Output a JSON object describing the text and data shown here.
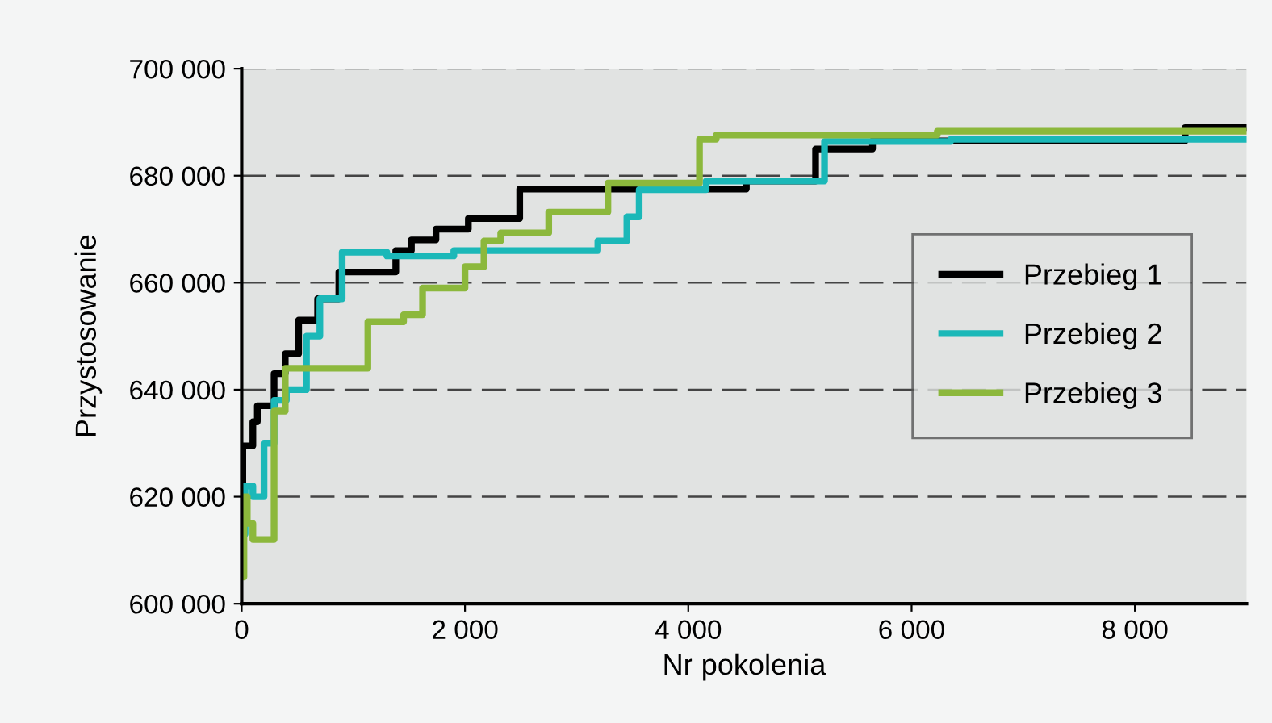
{
  "chart_data": {
    "type": "step",
    "xlabel": "Nr pokolenia",
    "ylabel": "Przystosowanie",
    "xlim": [
      0,
      9000
    ],
    "xticks": [
      0,
      {
        "value": 2000,
        "label": "2 000"
      },
      {
        "value": 4000,
        "label": "4 000"
      },
      {
        "value": 6000,
        "label": "6 000"
      },
      {
        "value": 8000,
        "label": "8 000"
      }
    ],
    "ylim": [
      600000,
      700000
    ],
    "yticks": [
      {
        "value": 600000,
        "label": "600 000"
      },
      {
        "value": 620000,
        "label": "620 000"
      },
      {
        "value": 640000,
        "label": "640 000"
      },
      {
        "value": 660000,
        "label": "660 000"
      },
      {
        "value": 680000,
        "label": "680 000"
      },
      {
        "value": 700000,
        "label": "700 000"
      }
    ],
    "grid": "y",
    "legend": "right",
    "line_style": "solid",
    "marker": "none",
    "series": [
      {
        "name": "Przebieg 1",
        "color": "#000000",
        "x": [
          0,
          10,
          100,
          140,
          290,
          390,
          510,
          680,
          870,
          1380,
          1520,
          1740,
          2030,
          2490,
          4520,
          5140,
          5650,
          8450,
          9000
        ],
        "values": [
          610000,
          629500,
          634000,
          637000,
          643000,
          646700,
          653000,
          657000,
          662000,
          666000,
          668000,
          670000,
          672000,
          677500,
          679000,
          685000,
          686500,
          689000,
          689000
        ]
      },
      {
        "name": "Przebieg 2",
        "color": "#1bb8b8",
        "x": [
          0,
          30,
          100,
          200,
          290,
          400,
          580,
          700,
          900,
          1300,
          1900,
          3190,
          3450,
          3560,
          4160,
          5220,
          6350,
          9000
        ],
        "values": [
          613000,
          622000,
          620000,
          630000,
          638000,
          640000,
          650000,
          657000,
          665700,
          665000,
          666000,
          667800,
          672300,
          677400,
          679000,
          686400,
          686800,
          686800
        ]
      },
      {
        "name": "Przebieg 3",
        "color": "#8cb83c",
        "x": [
          0,
          20,
          50,
          100,
          290,
          390,
          1130,
          1450,
          1620,
          2000,
          2170,
          2320,
          2750,
          3280,
          4100,
          4250,
          6230,
          9000
        ],
        "values": [
          605000,
          620000,
          615000,
          612000,
          636000,
          644000,
          652700,
          654000,
          659000,
          663000,
          667800,
          669300,
          673200,
          678600,
          686800,
          687600,
          688300,
          688300
        ]
      }
    ]
  }
}
